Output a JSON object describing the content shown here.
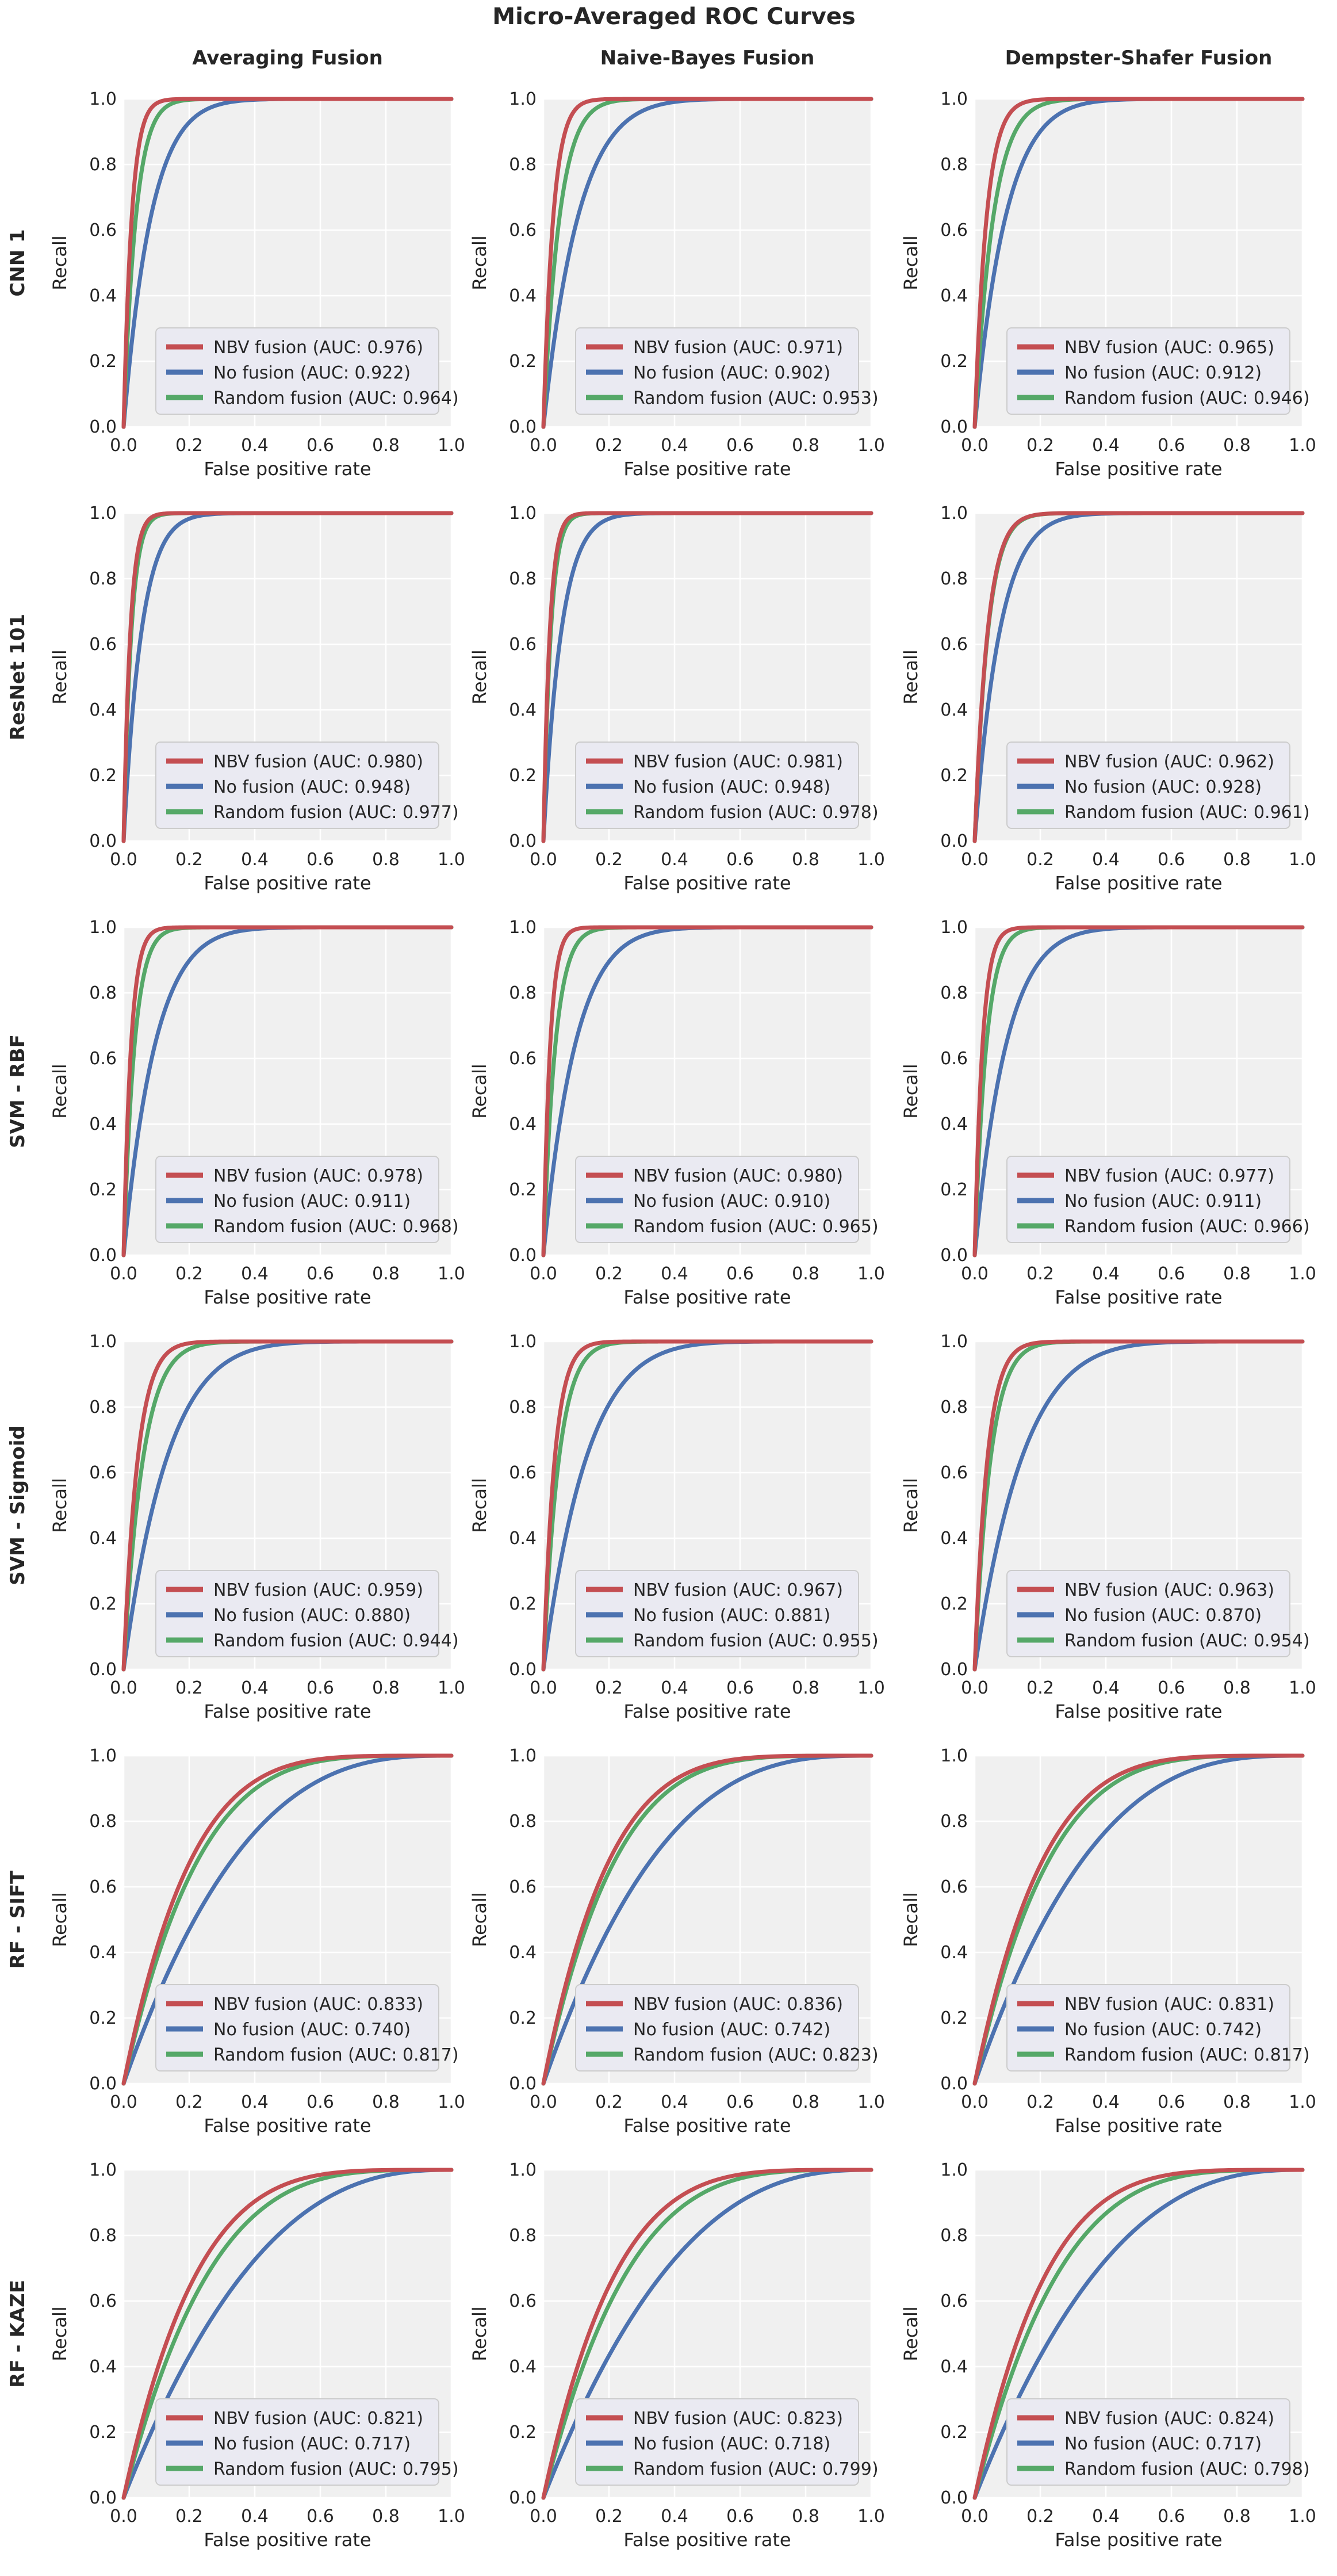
{
  "figure": {
    "title": "Micro-Averaged ROC Curves",
    "column_titles": [
      "Averaging Fusion",
      "Naive-Bayes Fusion",
      "Dempster-Shafer Fusion"
    ],
    "row_titles": [
      "CNN 1",
      "ResNet 101",
      "SVM - RBF",
      "SVM - Sigmoid",
      "RF - SIFT",
      "RF - KAZE"
    ],
    "colors": {
      "nbv": "#c44e52",
      "no": "#4c72b0",
      "random": "#55a868",
      "axes_bg": "#f0f0f0",
      "grid": "#ffffff"
    }
  },
  "chart_data": {
    "type": "line",
    "xlabel": "False positive rate",
    "ylabel": "Recall",
    "xlim": [
      0.0,
      1.0
    ],
    "ylim": [
      0.0,
      1.0
    ],
    "xticks": [
      "0.0",
      "0.2",
      "0.4",
      "0.6",
      "0.8",
      "1.0"
    ],
    "yticks": [
      "0.0",
      "0.2",
      "0.4",
      "0.6",
      "0.8",
      "1.0"
    ],
    "grid": true,
    "legend_position": "lower-right",
    "series_order": [
      "NBV fusion",
      "No fusion",
      "Random fusion"
    ],
    "panels": [
      {
        "row": "CNN 1",
        "column": "Averaging Fusion",
        "series": [
          {
            "name": "NBV fusion",
            "auc": "0.976"
          },
          {
            "name": "No fusion",
            "auc": "0.922"
          },
          {
            "name": "Random fusion",
            "auc": "0.964"
          }
        ]
      },
      {
        "row": "CNN 1",
        "column": "Naive-Bayes Fusion",
        "series": [
          {
            "name": "NBV fusion",
            "auc": "0.971"
          },
          {
            "name": "No fusion",
            "auc": "0.902"
          },
          {
            "name": "Random fusion",
            "auc": "0.953"
          }
        ]
      },
      {
        "row": "CNN 1",
        "column": "Dempster-Shafer Fusion",
        "series": [
          {
            "name": "NBV fusion",
            "auc": "0.965"
          },
          {
            "name": "No fusion",
            "auc": "0.912"
          },
          {
            "name": "Random fusion",
            "auc": "0.946"
          }
        ]
      },
      {
        "row": "ResNet 101",
        "column": "Averaging Fusion",
        "series": [
          {
            "name": "NBV fusion",
            "auc": "0.980"
          },
          {
            "name": "No fusion",
            "auc": "0.948"
          },
          {
            "name": "Random fusion",
            "auc": "0.977"
          }
        ]
      },
      {
        "row": "ResNet 101",
        "column": "Naive-Bayes Fusion",
        "series": [
          {
            "name": "NBV fusion",
            "auc": "0.981"
          },
          {
            "name": "No fusion",
            "auc": "0.948"
          },
          {
            "name": "Random fusion",
            "auc": "0.978"
          }
        ]
      },
      {
        "row": "ResNet 101",
        "column": "Dempster-Shafer Fusion",
        "series": [
          {
            "name": "NBV fusion",
            "auc": "0.962"
          },
          {
            "name": "No fusion",
            "auc": "0.928"
          },
          {
            "name": "Random fusion",
            "auc": "0.961"
          }
        ]
      },
      {
        "row": "SVM - RBF",
        "column": "Averaging Fusion",
        "series": [
          {
            "name": "NBV fusion",
            "auc": "0.978"
          },
          {
            "name": "No fusion",
            "auc": "0.911"
          },
          {
            "name": "Random fusion",
            "auc": "0.968"
          }
        ]
      },
      {
        "row": "SVM - RBF",
        "column": "Naive-Bayes Fusion",
        "series": [
          {
            "name": "NBV fusion",
            "auc": "0.980"
          },
          {
            "name": "No fusion",
            "auc": "0.910"
          },
          {
            "name": "Random fusion",
            "auc": "0.965"
          }
        ]
      },
      {
        "row": "SVM - RBF",
        "column": "Dempster-Shafer Fusion",
        "series": [
          {
            "name": "NBV fusion",
            "auc": "0.977"
          },
          {
            "name": "No fusion",
            "auc": "0.911"
          },
          {
            "name": "Random fusion",
            "auc": "0.966"
          }
        ]
      },
      {
        "row": "SVM - Sigmoid",
        "column": "Averaging Fusion",
        "series": [
          {
            "name": "NBV fusion",
            "auc": "0.959"
          },
          {
            "name": "No fusion",
            "auc": "0.880"
          },
          {
            "name": "Random fusion",
            "auc": "0.944"
          }
        ]
      },
      {
        "row": "SVM - Sigmoid",
        "column": "Naive-Bayes Fusion",
        "series": [
          {
            "name": "NBV fusion",
            "auc": "0.967"
          },
          {
            "name": "No fusion",
            "auc": "0.881"
          },
          {
            "name": "Random fusion",
            "auc": "0.955"
          }
        ]
      },
      {
        "row": "SVM - Sigmoid",
        "column": "Dempster-Shafer Fusion",
        "series": [
          {
            "name": "NBV fusion",
            "auc": "0.963"
          },
          {
            "name": "No fusion",
            "auc": "0.870"
          },
          {
            "name": "Random fusion",
            "auc": "0.954"
          }
        ]
      },
      {
        "row": "RF - SIFT",
        "column": "Averaging Fusion",
        "series": [
          {
            "name": "NBV fusion",
            "auc": "0.833"
          },
          {
            "name": "No fusion",
            "auc": "0.740"
          },
          {
            "name": "Random fusion",
            "auc": "0.817"
          }
        ]
      },
      {
        "row": "RF - SIFT",
        "column": "Naive-Bayes Fusion",
        "series": [
          {
            "name": "NBV fusion",
            "auc": "0.836"
          },
          {
            "name": "No fusion",
            "auc": "0.742"
          },
          {
            "name": "Random fusion",
            "auc": "0.823"
          }
        ]
      },
      {
        "row": "RF - SIFT",
        "column": "Dempster-Shafer Fusion",
        "series": [
          {
            "name": "NBV fusion",
            "auc": "0.831"
          },
          {
            "name": "No fusion",
            "auc": "0.742"
          },
          {
            "name": "Random fusion",
            "auc": "0.817"
          }
        ]
      },
      {
        "row": "RF - KAZE",
        "column": "Averaging Fusion",
        "series": [
          {
            "name": "NBV fusion",
            "auc": "0.821"
          },
          {
            "name": "No fusion",
            "auc": "0.717"
          },
          {
            "name": "Random fusion",
            "auc": "0.795"
          }
        ]
      },
      {
        "row": "RF - KAZE",
        "column": "Naive-Bayes Fusion",
        "series": [
          {
            "name": "NBV fusion",
            "auc": "0.823"
          },
          {
            "name": "No fusion",
            "auc": "0.718"
          },
          {
            "name": "Random fusion",
            "auc": "0.799"
          }
        ]
      },
      {
        "row": "RF - KAZE",
        "column": "Dempster-Shafer Fusion",
        "series": [
          {
            "name": "NBV fusion",
            "auc": "0.824"
          },
          {
            "name": "No fusion",
            "auc": "0.717"
          },
          {
            "name": "Random fusion",
            "auc": "0.798"
          }
        ]
      }
    ]
  }
}
